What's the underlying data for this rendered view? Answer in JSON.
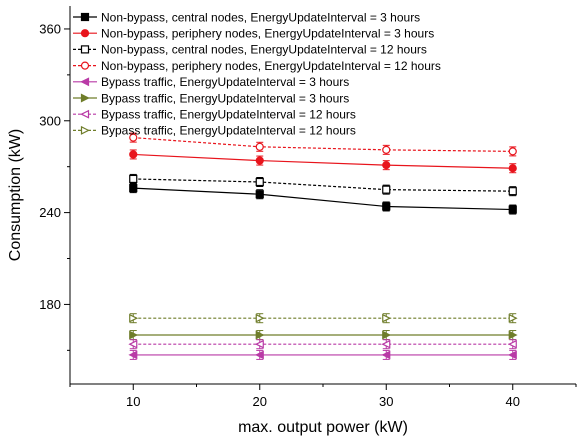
{
  "chart_data": {
    "type": "line",
    "xlabel": "max. output power (kW)",
    "ylabel": "Consumption (kW)",
    "xlim": [
      5,
      45
    ],
    "ylim": [
      128,
      375
    ],
    "x": [
      10,
      20,
      30,
      40
    ],
    "xticks": [
      10,
      20,
      30,
      40
    ],
    "yticks": [
      180,
      240,
      300,
      360
    ],
    "yminor": [
      150,
      210,
      270,
      330
    ],
    "grid": false,
    "legend_position": "top-left",
    "series": [
      {
        "name": "Non-bypass, central nodes, EnergyUpdateInterval = 3 hours",
        "values": [
          256,
          252,
          244,
          242
        ],
        "color": "#000000",
        "marker": "square",
        "filled": true,
        "dashed": false
      },
      {
        "name": "Non-bypass, periphery nodes, EnergyUpdateInterval = 3 hours",
        "values": [
          278,
          274,
          271,
          269
        ],
        "color": "#e8141c",
        "marker": "circle",
        "filled": true,
        "dashed": false
      },
      {
        "name": "Non-bypass, central nodes, EnergyUpdateInterval = 12 hours",
        "values": [
          262,
          260,
          255,
          254
        ],
        "color": "#000000",
        "marker": "square",
        "filled": false,
        "dashed": true
      },
      {
        "name": "Non-bypass, periphery nodes, EnergyUpdateInterval = 12 hours",
        "values": [
          289,
          283,
          281,
          280
        ],
        "color": "#e8141c",
        "marker": "circle",
        "filled": false,
        "dashed": true
      },
      {
        "name": "Bypass traffic, EnergyUpdateInterval = 3 hours",
        "values": [
          147,
          147,
          147,
          147
        ],
        "color": "#b93aa6",
        "marker": "triangle-left",
        "filled": true,
        "dashed": false
      },
      {
        "name": "Bypass traffic, EnergyUpdateInterval = 3 hours",
        "values": [
          160,
          160,
          160,
          160
        ],
        "color": "#6f7d2a",
        "marker": "triangle-right",
        "filled": true,
        "dashed": false
      },
      {
        "name": "Bypass traffic, EnergyUpdateInterval = 12 hours",
        "values": [
          154,
          154,
          154,
          154
        ],
        "color": "#b93aa6",
        "marker": "triangle-left",
        "filled": false,
        "dashed": true
      },
      {
        "name": "Bypass traffic, EnergyUpdateInterval = 12 hours",
        "values": [
          171,
          171,
          171,
          171
        ],
        "color": "#6f7d2a",
        "marker": "triangle-right",
        "filled": false,
        "dashed": true
      }
    ]
  }
}
